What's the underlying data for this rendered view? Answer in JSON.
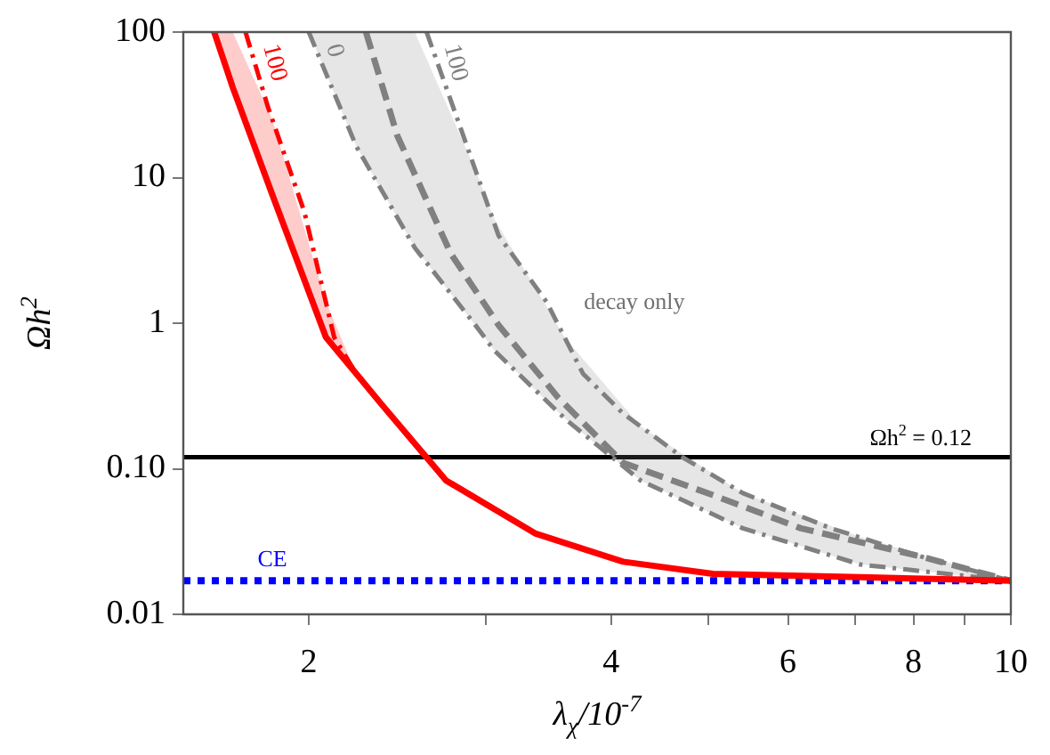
{
  "chart_data": {
    "type": "line",
    "xlabel": "λ$_{χ}$/10$^{-7}$",
    "ylabel": "Ωh$^{2}$",
    "log": "xy",
    "grid": false,
    "legend": false,
    "xlim": [
      1.5,
      10
    ],
    "xticks": [
      2,
      {
        "value": 3,
        "label": null
      },
      4,
      {
        "value": 5,
        "label": null
      },
      6,
      {
        "value": 7,
        "label": null
      },
      8,
      {
        "value": 9,
        "label": null
      },
      10
    ],
    "ylim": [
      0.01,
      100
    ],
    "yticks": [
      {
        "value": 0.01,
        "label": "0.01"
      },
      {
        "value": 0.1,
        "label": "0.10"
      },
      1,
      10,
      100
    ],
    "series": [
      {
        "color": "#ff0000",
        "line_style": "solid",
        "x": [
          1.61,
          1.68,
          1.84,
          2.08,
          2.23,
          2.36,
          2.74,
          3.36,
          4.11,
          5.05,
          7.08,
          10
        ],
        "values": [
          100,
          41.7,
          7.6,
          0.8,
          0.45,
          0.28,
          0.083,
          0.036,
          0.023,
          0.019,
          0.018,
          0.017
        ],
        "lower": [
          100,
          41.7,
          7.6,
          0.8,
          0.45,
          null,
          null,
          null,
          null,
          null,
          null,
          null
        ],
        "upper": [
          100,
          100,
          25,
          1.4,
          0.45,
          null,
          null,
          null,
          null,
          null,
          null,
          null
        ]
      },
      {
        "name": "100",
        "color": "#ff0000",
        "line_style": "dashdot",
        "x": [
          1.73,
          1.82,
          1.98,
          2.12,
          2.23
        ],
        "values": [
          100,
          31,
          5.8,
          0.8,
          0.45
        ]
      },
      {
        "name": "0",
        "color": "#808080",
        "line_style": "dashdot",
        "x": [
          2.0,
          2.23,
          2.55,
          2.93,
          3.06,
          3.6,
          4.28,
          5.41,
          7.08,
          10
        ],
        "values": [
          100,
          16.4,
          3.3,
          0.97,
          0.65,
          0.22,
          0.083,
          0.039,
          0.022,
          0.017
        ],
        "lower": [
          100,
          16.4,
          3.3,
          0.97,
          0.65,
          0.22,
          0.083,
          0.039,
          0.022,
          0.017
        ],
        "upper": [
          100,
          100,
          100,
          11.3,
          5.2,
          0.79,
          0.195,
          0.068,
          0.034,
          0.017
        ]
      },
      {
        "name": "100",
        "color": "#808080",
        "line_style": "dashdot",
        "x": [
          2.62,
          2.85,
          3.09,
          3.45,
          3.75,
          4.11,
          4.71,
          5.41,
          6.62,
          8.13,
          10
        ],
        "values": [
          100,
          19.4,
          4.0,
          1.4,
          0.45,
          0.24,
          0.12,
          0.068,
          0.039,
          0.025,
          0.017
        ]
      },
      {
        "color": "#808080",
        "line_style": "dashed",
        "x": [
          2.28,
          2.45,
          2.77,
          3.09,
          3.54,
          4.11,
          5.05,
          6.18,
          8.13,
          10
        ],
        "values": [
          100,
          19.4,
          3.0,
          0.97,
          0.31,
          0.11,
          0.066,
          0.039,
          0.025,
          0.017
        ]
      }
    ],
    "ref_lines": [
      {
        "axis": "y",
        "value": 0.12,
        "label": "Ωh$^{2}$ = 0.12",
        "color": "#000000",
        "line_style": "solid"
      },
      {
        "axis": "y",
        "value": 0.017,
        "label": "CE",
        "color": "#0000ff",
        "line_style": "dotted"
      }
    ],
    "annotations": [
      "decay only"
    ]
  }
}
